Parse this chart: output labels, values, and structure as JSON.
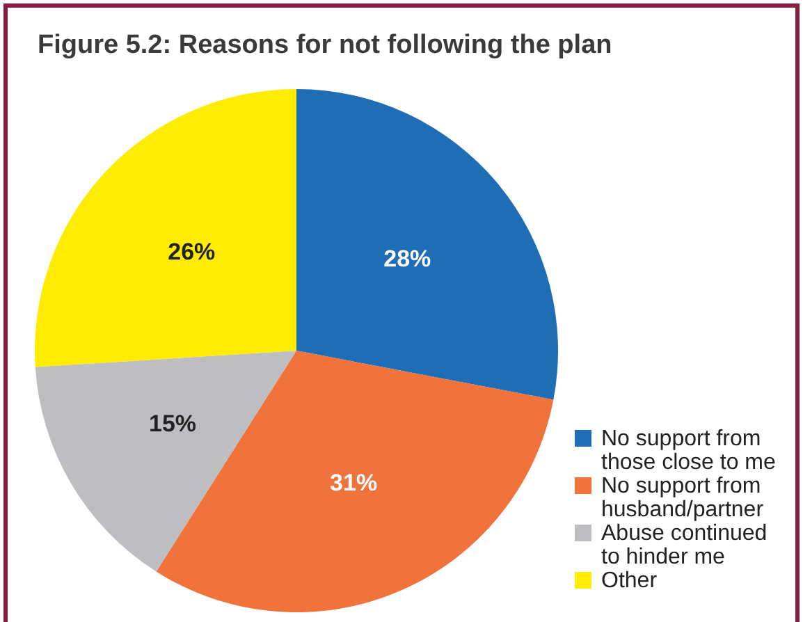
{
  "chart_data": {
    "type": "pie",
    "title": "Figure 5.2: Reasons for not following the plan",
    "categories": [
      "No support from those close to me",
      "No support from husband/partner",
      "Abuse continued to hinder me",
      "Other"
    ],
    "values": [
      28,
      31,
      15,
      26
    ],
    "colors": [
      "#1f6db5",
      "#ef733a",
      "#bdbec2",
      "#ffec00"
    ],
    "value_labels": [
      "28%",
      "31%",
      "15%",
      "26%"
    ],
    "legend": "bottom right"
  }
}
